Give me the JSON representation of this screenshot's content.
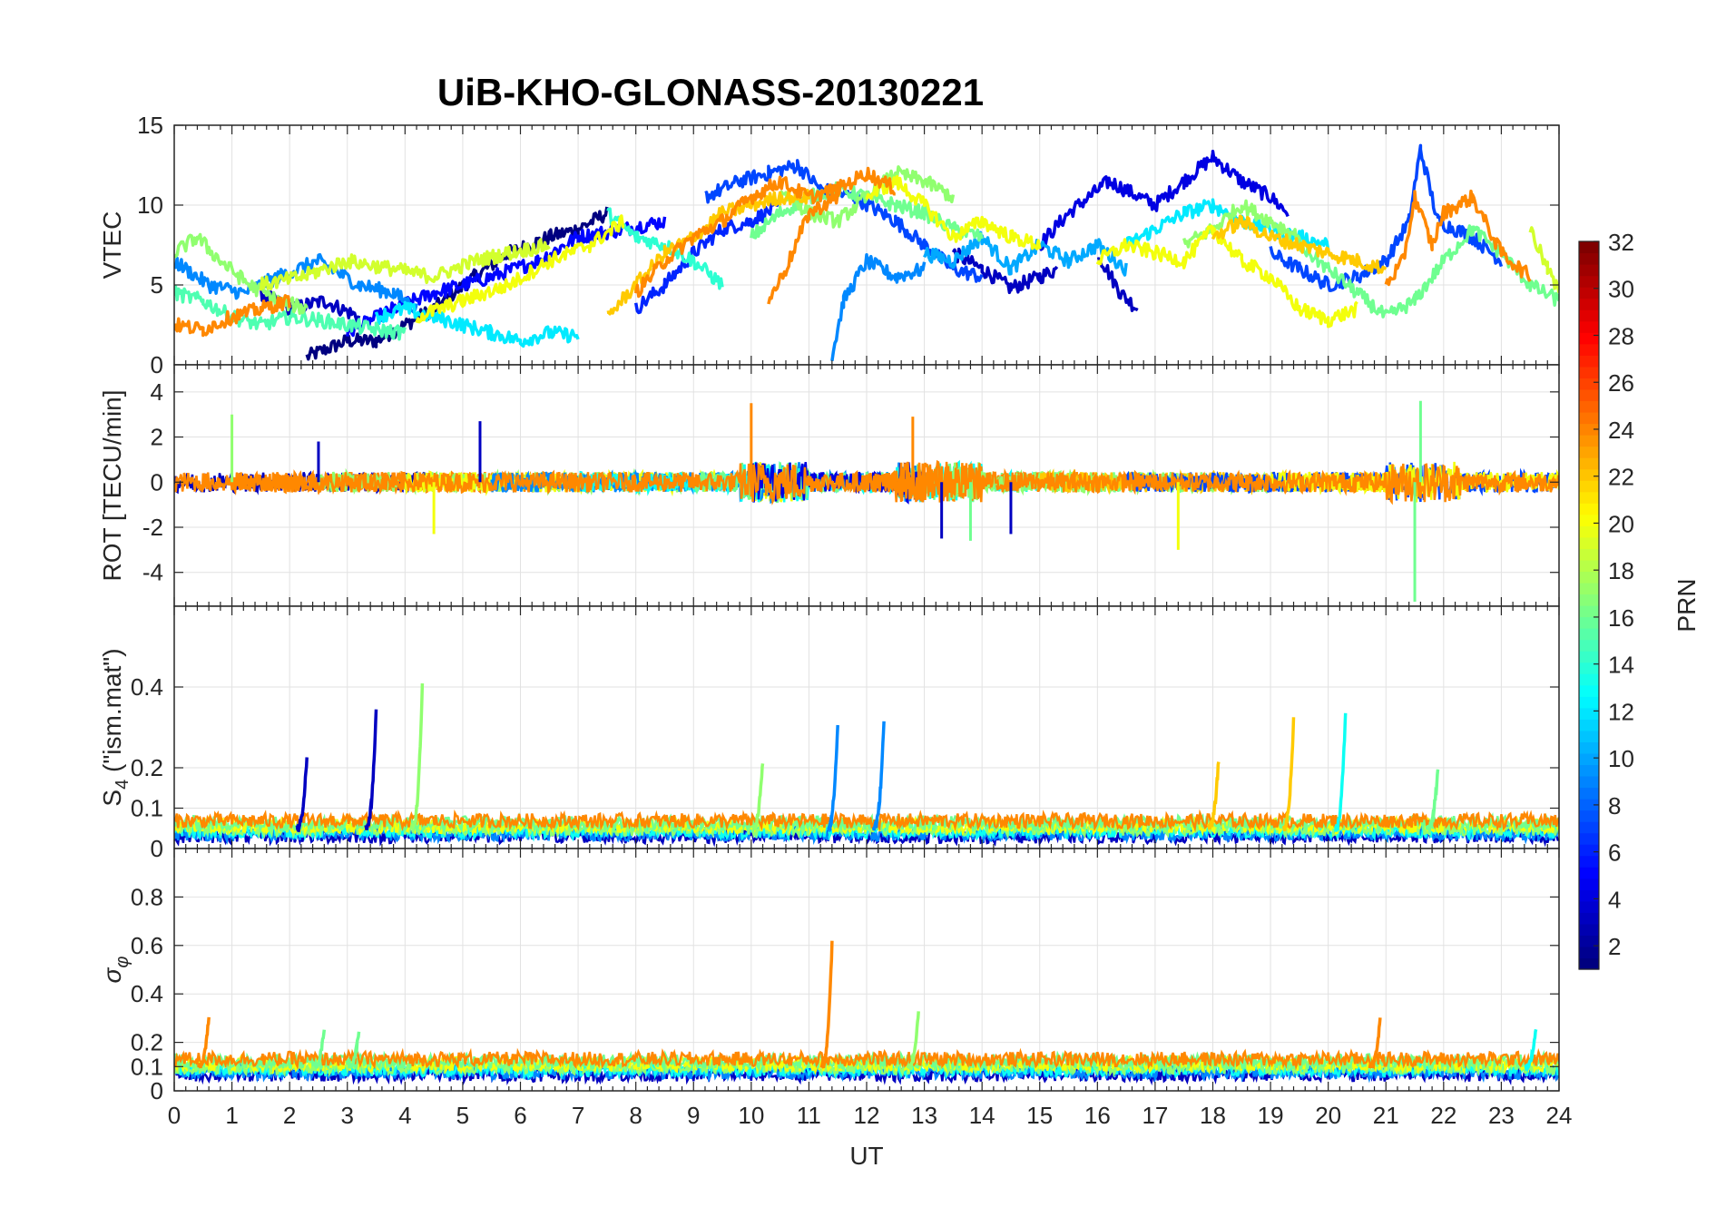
{
  "figure": {
    "title": "UiB-KHO-GLONASS-20130221",
    "xlabel": "UT",
    "x_ticks": [
      "0",
      "1",
      "2",
      "3",
      "4",
      "5",
      "6",
      "7",
      "8",
      "9",
      "10",
      "11",
      "12",
      "13",
      "14",
      "15",
      "16",
      "17",
      "18",
      "19",
      "20",
      "21",
      "22",
      "23",
      "24"
    ]
  },
  "colorbar": {
    "label": "PRN",
    "colormap": "jet",
    "range": [
      1,
      32
    ],
    "ticks": [
      "2",
      "4",
      "6",
      "8",
      "10",
      "12",
      "14",
      "16",
      "18",
      "20",
      "22",
      "24",
      "26",
      "28",
      "30",
      "32"
    ]
  },
  "chart_data": [
    {
      "type": "line",
      "panel": "vtec",
      "ylabel": "VTEC",
      "ylim": [
        0,
        15
      ],
      "y_ticks": [
        "0",
        "5",
        "10",
        "15"
      ],
      "xlim": [
        0,
        24
      ],
      "grid": true,
      "series": [
        {
          "prn": 1,
          "x": [
            2.3,
            3.0,
            3.5,
            4.5,
            5.2,
            5.8,
            6.5,
            7.0,
            7.5
          ],
          "values": [
            0.5,
            1.5,
            1.5,
            3.5,
            5.5,
            7.0,
            8.0,
            8.5,
            9.5
          ]
        },
        {
          "prn": 3,
          "x": [
            1.5,
            2.0,
            2.6,
            3.2
          ],
          "values": [
            4.5,
            3.5,
            4.0,
            3.0
          ]
        },
        {
          "prn": 3,
          "x": [
            13.5,
            14.0,
            14.5,
            15.0,
            15.3
          ],
          "values": [
            7.0,
            6.0,
            4.8,
            5.5,
            6.0
          ]
        },
        {
          "prn": 3,
          "x": [
            16.0,
            16.4,
            16.7
          ],
          "values": [
            7.0,
            4.5,
            3.5
          ]
        },
        {
          "prn": 4,
          "x": [
            15.0,
            15.5,
            16.2,
            17.0,
            17.5,
            18.0,
            18.5,
            19.0,
            19.3
          ],
          "values": [
            7.5,
            9.5,
            11.5,
            10.0,
            11.5,
            13.0,
            11.5,
            10.5,
            9.5
          ]
        },
        {
          "prn": 5,
          "x": [
            3.0,
            3.8,
            4.5,
            5.5,
            6.3,
            7.0,
            7.8,
            8.5
          ],
          "values": [
            2.0,
            3.5,
            4.5,
            5.5,
            6.5,
            8.0,
            8.5,
            9.0
          ]
        },
        {
          "prn": 6,
          "x": [
            8.0,
            8.5,
            9.0,
            9.5,
            10.0,
            10.5
          ],
          "values": [
            3.5,
            5.0,
            7.0,
            8.5,
            9.0,
            10.0
          ]
        },
        {
          "prn": 7,
          "x": [
            9.2,
            9.8,
            10.3,
            10.8,
            11.2,
            11.8,
            12.5,
            13.0,
            13.5,
            14.0
          ],
          "values": [
            10.5,
            11.5,
            12.0,
            12.5,
            11.0,
            10.5,
            9.0,
            7.5,
            6.0,
            5.5
          ]
        },
        {
          "prn": 7,
          "x": [
            19.0,
            19.5,
            20.0,
            20.5,
            21.0,
            21.4,
            21.6,
            21.9,
            22.5,
            23.0
          ],
          "values": [
            7.0,
            6.0,
            5.0,
            5.5,
            6.5,
            9.0,
            13.5,
            9.0,
            8.0,
            6.5
          ]
        },
        {
          "prn": 9,
          "x": [
            11.4,
            11.6,
            12.0,
            12.5,
            13.0
          ],
          "values": [
            0.5,
            4.0,
            6.5,
            5.5,
            6.0
          ]
        },
        {
          "prn": 9,
          "x": [
            0.0,
            0.6,
            1.2,
            1.8,
            2.5,
            3.2,
            3.8,
            4.2
          ],
          "values": [
            6.5,
            5.0,
            4.5,
            5.5,
            6.5,
            5.0,
            4.5,
            3.5
          ]
        },
        {
          "prn": 10,
          "x": [
            13.0,
            13.5,
            14.0,
            14.5,
            15.0,
            15.5,
            16.0,
            16.5
          ],
          "values": [
            7.0,
            6.5,
            8.0,
            6.0,
            7.5,
            6.5,
            7.5,
            6.0
          ]
        },
        {
          "prn": 12,
          "x": [
            3.5,
            4.0,
            4.5,
            5.0,
            5.5,
            6.0,
            6.5,
            7.0
          ],
          "values": [
            3.0,
            3.5,
            3.0,
            2.5,
            2.0,
            1.5,
            2.0,
            1.8
          ]
        },
        {
          "prn": 12,
          "x": [
            16.5,
            17.0,
            17.5,
            18.0,
            18.5,
            19.0,
            19.5,
            20.0
          ],
          "values": [
            7.5,
            8.5,
            9.5,
            10.0,
            9.0,
            8.5,
            8.0,
            7.5
          ]
        },
        {
          "prn": 14,
          "x": [
            7.5,
            8.0,
            8.5,
            9.0,
            9.5
          ],
          "values": [
            9.5,
            8.0,
            7.5,
            6.5,
            5.0
          ]
        },
        {
          "prn": 15,
          "x": [
            0.0,
            0.5,
            1.0,
            1.5,
            2.0,
            2.5,
            3.0,
            3.5,
            4.0
          ],
          "values": [
            4.5,
            4.0,
            3.0,
            2.5,
            3.0,
            2.8,
            2.5,
            2.2,
            2.0
          ]
        },
        {
          "prn": 16,
          "x": [
            10.0,
            10.5,
            11.0,
            11.5,
            12.0,
            12.5,
            13.0,
            13.5,
            14.0
          ],
          "values": [
            8.0,
            9.5,
            10.5,
            11.0,
            10.5,
            10.0,
            9.5,
            8.5,
            8.0
          ]
        },
        {
          "prn": 16,
          "x": [
            19.5,
            20.0,
            20.5,
            21.0,
            21.5,
            22.0,
            22.5,
            23.0,
            23.5,
            24.0
          ],
          "values": [
            7.5,
            6.0,
            4.5,
            3.0,
            4.0,
            6.5,
            8.5,
            7.0,
            5.0,
            4.0
          ]
        },
        {
          "prn": 17,
          "x": [
            0.0,
            0.4,
            0.8,
            1.3,
            1.8,
            2.3
          ],
          "values": [
            7.0,
            8.0,
            6.5,
            5.0,
            4.0,
            3.5
          ]
        },
        {
          "prn": 17,
          "x": [
            10.5,
            11.0,
            11.5,
            12.0,
            12.5,
            13.0,
            13.5
          ],
          "values": [
            11.0,
            9.5,
            9.0,
            10.5,
            12.0,
            11.5,
            10.5
          ]
        },
        {
          "prn": 17,
          "x": [
            17.5,
            18.0,
            18.5,
            19.0,
            19.5
          ],
          "values": [
            7.5,
            8.5,
            10.0,
            9.0,
            8.0
          ]
        },
        {
          "prn": 19,
          "x": [
            1.5,
            2.2,
            3.0,
            3.8,
            4.5,
            5.2,
            5.8,
            6.5
          ],
          "values": [
            5.0,
            5.5,
            6.5,
            6.0,
            5.5,
            6.5,
            7.0,
            7.5
          ]
        },
        {
          "prn": 19,
          "x": [
            23.5,
            23.8,
            24.0
          ],
          "values": [
            8.5,
            6.0,
            4.5
          ]
        },
        {
          "prn": 20,
          "x": [
            4.2,
            5.0,
            5.8,
            6.5,
            7.2,
            7.8
          ],
          "values": [
            3.0,
            4.0,
            5.0,
            6.5,
            7.5,
            9.0
          ]
        },
        {
          "prn": 20,
          "x": [
            12.0,
            12.5,
            13.0,
            13.5,
            14.0,
            14.5,
            15.0
          ],
          "values": [
            10.5,
            11.5,
            10.0,
            8.0,
            9.0,
            8.0,
            7.5
          ]
        },
        {
          "prn": 20,
          "x": [
            16.0,
            16.5,
            17.0,
            17.5,
            18.0,
            18.5,
            19.0,
            19.5,
            20.0,
            20.5
          ],
          "values": [
            6.5,
            7.5,
            7.0,
            6.5,
            8.5,
            6.5,
            5.5,
            3.5,
            2.8,
            3.5
          ]
        },
        {
          "prn": 22,
          "x": [
            7.5,
            8.0,
            8.5,
            9.0,
            9.5,
            10.0,
            10.5,
            11.0
          ],
          "values": [
            3.0,
            5.0,
            7.0,
            8.0,
            9.5,
            10.0,
            10.5,
            10.5
          ]
        },
        {
          "prn": 22,
          "x": [
            18.0,
            18.5,
            19.0,
            19.5,
            20.0,
            20.5,
            21.0
          ],
          "values": [
            8.0,
            9.0,
            8.0,
            7.5,
            7.0,
            6.5,
            6.0
          ]
        },
        {
          "prn": 24,
          "x": [
            0.0,
            0.5,
            1.0,
            1.5,
            2.0
          ],
          "values": [
            2.5,
            2.2,
            3.0,
            3.5,
            4.0
          ]
        },
        {
          "prn": 24,
          "x": [
            8.0,
            8.5,
            9.0,
            9.5,
            10.0,
            10.5,
            11.0,
            11.5,
            12.0,
            12.5
          ],
          "values": [
            4.5,
            6.5,
            8.0,
            9.0,
            10.5,
            11.5,
            10.5,
            11.0,
            12.0,
            11.0
          ]
        },
        {
          "prn": 24,
          "x": [
            10.3,
            10.6,
            11.0,
            11.5
          ],
          "values": [
            4.0,
            6.0,
            9.5,
            10.5
          ]
        },
        {
          "prn": 24,
          "x": [
            21.0,
            21.3,
            21.5,
            21.8,
            22.0,
            22.5,
            23.0,
            23.5
          ],
          "values": [
            5.0,
            6.5,
            10.5,
            7.5,
            9.5,
            10.5,
            7.0,
            5.5
          ]
        }
      ]
    },
    {
      "type": "line",
      "panel": "rot",
      "ylabel": "ROT [TECU/min]",
      "ylim": [
        -5.5,
        5.2
      ],
      "y_ticks": [
        "-4",
        "-2",
        "0",
        "2",
        "4"
      ],
      "xlim": [
        0,
        24
      ],
      "grid": true,
      "spikes": [
        {
          "prn": 17,
          "x": 1.0,
          "value": 3.0
        },
        {
          "prn": 3,
          "x": 5.3,
          "value": 2.7
        },
        {
          "prn": 24,
          "x": 10.0,
          "value": 3.5
        },
        {
          "prn": 24,
          "x": 12.8,
          "value": 2.9
        },
        {
          "prn": 3,
          "x": 13.3,
          "value": -2.5
        },
        {
          "prn": 16,
          "x": 13.8,
          "value": -2.6
        },
        {
          "prn": 3,
          "x": 14.5,
          "value": -2.3
        },
        {
          "prn": 20,
          "x": 17.4,
          "value": -3.0
        },
        {
          "prn": 16,
          "x": 21.6,
          "value": 3.6
        },
        {
          "prn": 16,
          "x": 21.5,
          "value": -5.3
        },
        {
          "prn": 20,
          "x": 4.5,
          "value": -2.3
        },
        {
          "prn": 3,
          "x": 2.5,
          "value": 1.8
        }
      ]
    },
    {
      "type": "line",
      "panel": "s4",
      "ylabel": "S4 (\"ism.mat\")",
      "ylim": [
        0,
        0.6
      ],
      "y_ticks": [
        "0",
        "0.1",
        "0.2",
        "0.4"
      ],
      "xlim": [
        0,
        24
      ],
      "grid": true,
      "peaks": [
        {
          "prn": 3,
          "x": 2.3,
          "value": 0.23
        },
        {
          "prn": 3,
          "x": 3.5,
          "value": 0.35
        },
        {
          "prn": 17,
          "x": 4.3,
          "value": 0.41
        },
        {
          "prn": 9,
          "x": 11.5,
          "value": 0.31
        },
        {
          "prn": 9,
          "x": 12.3,
          "value": 0.32
        },
        {
          "prn": 17,
          "x": 10.2,
          "value": 0.22
        },
        {
          "prn": 22,
          "x": 18.1,
          "value": 0.22
        },
        {
          "prn": 22,
          "x": 19.4,
          "value": 0.32
        },
        {
          "prn": 13,
          "x": 20.3,
          "value": 0.34
        },
        {
          "prn": 16,
          "x": 21.9,
          "value": 0.2
        }
      ]
    },
    {
      "type": "line",
      "panel": "sigma_phi",
      "ylabel": "σφ",
      "ylim": [
        0,
        1
      ],
      "y_ticks": [
        "0",
        "0.1",
        "0.2",
        "0.4",
        "0.6",
        "0.8"
      ],
      "xlim": [
        0,
        24
      ],
      "grid": true,
      "peaks": [
        {
          "prn": 24,
          "x": 0.6,
          "value": 0.31
        },
        {
          "prn": 16,
          "x": 2.6,
          "value": 0.26
        },
        {
          "prn": 16,
          "x": 3.2,
          "value": 0.25
        },
        {
          "prn": 24,
          "x": 11.4,
          "value": 0.61
        },
        {
          "prn": 17,
          "x": 12.9,
          "value": 0.33
        },
        {
          "prn": 24,
          "x": 20.9,
          "value": 0.3
        },
        {
          "prn": 13,
          "x": 23.6,
          "value": 0.26
        }
      ]
    }
  ]
}
